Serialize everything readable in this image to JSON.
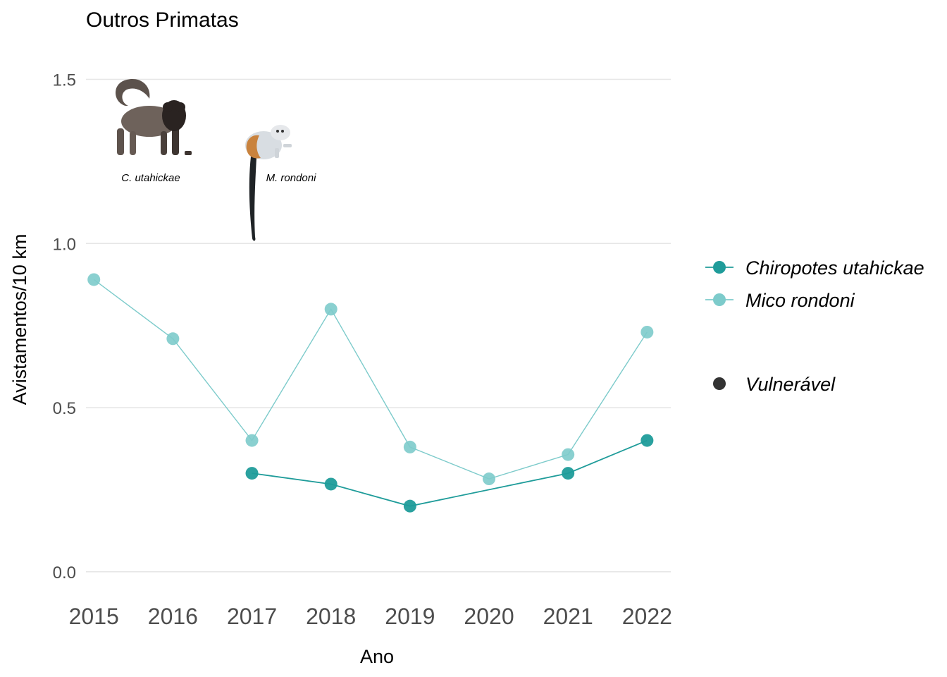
{
  "chart_data": {
    "type": "line",
    "title": "Outros Primatas",
    "xlabel": "Ano",
    "ylabel": "Avistamentos/10 km",
    "x": [
      2015,
      2016,
      2017,
      2018,
      2019,
      2020,
      2021,
      2022
    ],
    "x_tick_labels": [
      "2015",
      "2016",
      "2017",
      "2018",
      "2019",
      "2020",
      "2021",
      "2022"
    ],
    "y_ticks": [
      0.0,
      0.5,
      1.0,
      1.5
    ],
    "y_tick_labels": [
      "0.0",
      "0.5",
      "1.0",
      "1.5"
    ],
    "ylim": [
      -0.08,
      1.6
    ],
    "xlim": [
      2014.9,
      2022.3
    ],
    "grid": "horizontal",
    "legend_position": "right",
    "series": [
      {
        "name": "Chiropotes utahickae",
        "color": "#1f9c9a",
        "values": [
          null,
          null,
          0.3,
          0.267,
          0.2,
          null,
          0.3,
          0.4
        ]
      },
      {
        "name": "Mico rondoni",
        "color": "#7dcbcb",
        "values": [
          0.89,
          0.71,
          0.4,
          0.8,
          0.38,
          0.283,
          0.357,
          0.73
        ]
      }
    ],
    "status_legend": [
      {
        "label": "Vulnerável",
        "color": "#333333"
      }
    ],
    "illustrations": [
      {
        "caption": "C. utahickae",
        "icon": "bearded-saki-monkey-icon"
      },
      {
        "caption": "M. rondoni",
        "icon": "marmoset-icon"
      }
    ]
  }
}
